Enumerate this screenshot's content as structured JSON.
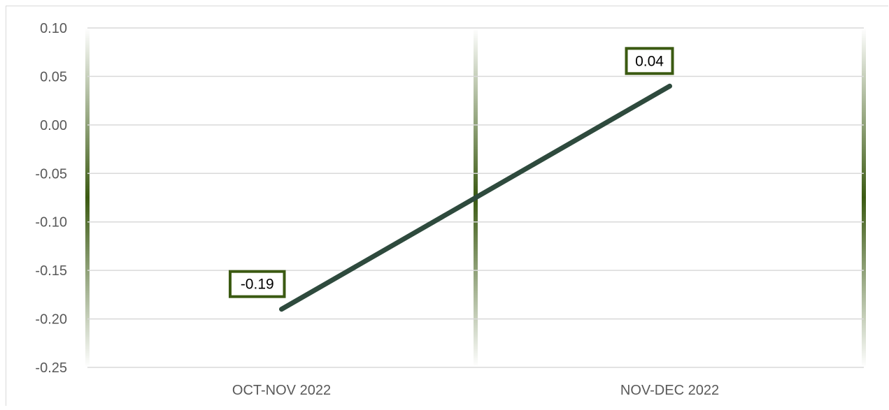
{
  "chart_data": {
    "type": "line",
    "categories": [
      "OCT-NOV 2022",
      "NOV-DEC 2022"
    ],
    "series": [
      {
        "values": [
          -0.19,
          0.04
        ]
      }
    ],
    "data_labels": [
      "-0.19",
      "0.04"
    ],
    "y_ticks": [
      "0.10",
      "0.05",
      "0.00",
      "-0.05",
      "-0.10",
      "-0.15",
      "-0.20",
      "-0.25"
    ],
    "ylim": [
      -0.25,
      0.1
    ],
    "grid": true,
    "legend": "none",
    "title": "",
    "xlabel": "",
    "ylabel": ""
  },
  "colors": {
    "line": "#2e4a3d",
    "label_border": "#3b5a12",
    "gridline": "#d9d9d9",
    "axis_text": "#595959",
    "band_dark": "#3b5a12"
  }
}
